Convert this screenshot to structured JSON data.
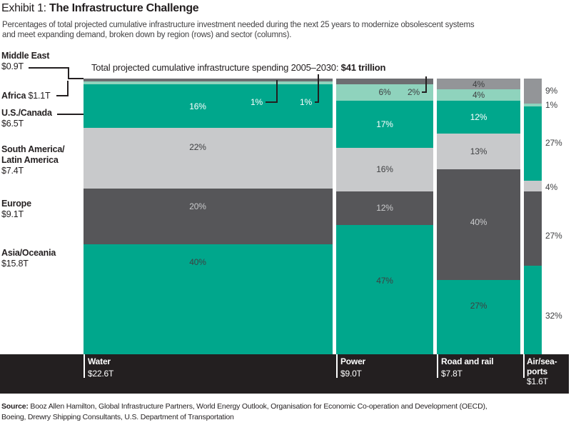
{
  "header": {
    "exhibit_label": "Exhibit 1: ",
    "title": "The Infrastructure Challenge",
    "subtitle_line1": "Percentages of total projected cumulative infrastructure investment needed during the next 25 years to modernize obsolescent systems",
    "subtitle_line2": "and meet expanding demand, broken down by region (rows) and sector (columns)."
  },
  "annotation": {
    "text": "Total projected cumulative infrastructure spending 2005–2030: ",
    "value": "$41 trillion"
  },
  "chart_data": {
    "type": "mekko",
    "title": "The Infrastructure Challenge",
    "total_label": "Total projected cumulative infrastructure spending 2005–2030: $41 trillion",
    "value_unit": "percent of each sector column",
    "rows": [
      {
        "key": "me",
        "name_lines": [
          "Middle East"
        ],
        "total": "$0.9T"
      },
      {
        "key": "africa",
        "name_lines": [
          "Africa"
        ],
        "total": "$1.1T"
      },
      {
        "key": "us",
        "name_lines": [
          "U.S./Canada"
        ],
        "total": "$6.5T"
      },
      {
        "key": "sa",
        "name_lines": [
          "South America/",
          "Latin America"
        ],
        "total": "$7.4T"
      },
      {
        "key": "eu",
        "name_lines": [
          "Europe"
        ],
        "total": "$9.1T"
      },
      {
        "key": "asia",
        "name_lines": [
          "Asia/Oceania"
        ],
        "total": "$15.8T"
      }
    ],
    "columns": [
      {
        "key": "water",
        "name_lines": [
          "Water"
        ],
        "total": "$22.6T",
        "values": [
          1,
          1,
          16,
          22,
          20,
          40
        ]
      },
      {
        "key": "power",
        "name_lines": [
          "Power"
        ],
        "total": "$9.0T",
        "values": [
          2,
          6,
          17,
          16,
          12,
          47
        ]
      },
      {
        "key": "road-rail",
        "name_lines": [
          "Road and rail"
        ],
        "total": "$7.8T",
        "values": [
          4,
          4,
          12,
          13,
          40,
          27
        ]
      },
      {
        "key": "air-sea",
        "name_lines": [
          "Air/sea-",
          "ports"
        ],
        "total": "$1.6T",
        "values": [
          9,
          1,
          27,
          4,
          27,
          32
        ]
      }
    ]
  },
  "source": {
    "label": "Source: ",
    "line1": "Booz Allen Hamilton, Global Infrastructure Partners, World Energy Outlook, Organisation for Economic Co-operation and Development (OECD),",
    "line2": "Boeing, Drewry Shipping Consultants, U.S. Department of Transportation"
  },
  "colors": {
    "teal": "#00A78C",
    "africa_green": "#8FD3BD",
    "light_gray": "#C8C9CB",
    "dark_gray": "#565659",
    "middle_east_gray": "#939598",
    "middle_east_gray_dark": "#6D6E71",
    "bar_black": "#231F20",
    "text_dark": "#231F20",
    "pct_on_dark": "#C9CACC",
    "pct_dark": "#3E3F41",
    "pct_white": "#FFFFFF"
  }
}
